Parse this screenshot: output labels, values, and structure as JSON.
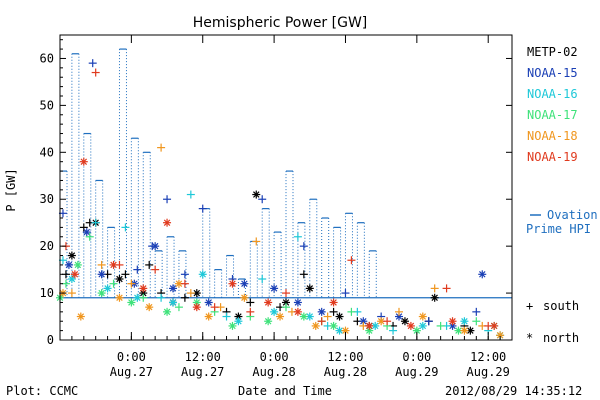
{
  "chart_data": {
    "type": "scatter",
    "title": "Hemispheric Power [GW]",
    "xlabel": "Date and Time",
    "ylabel": "P [GW]",
    "ylim": [
      0,
      65
    ],
    "yticks": [
      0,
      10,
      20,
      30,
      40,
      50,
      60
    ],
    "xlim": [
      "2012-08-26 12:00",
      "2012-08-29 16:00"
    ],
    "xticks": [
      {
        "t": "2012-08-27 00:00",
        "time": "0:00",
        "date": "Aug.27"
      },
      {
        "t": "2012-08-27 12:00",
        "time": "12:00",
        "date": "Aug.27"
      },
      {
        "t": "2012-08-28 00:00",
        "time": "0:00",
        "date": "Aug.28"
      },
      {
        "t": "2012-08-28 12:00",
        "time": "12:00",
        "date": "Aug.28"
      },
      {
        "t": "2012-08-29 00:00",
        "time": "0:00",
        "date": "Aug.29"
      },
      {
        "t": "2012-08-29 12:00",
        "time": "12:00",
        "date": "Aug.29"
      }
    ],
    "legend_placement": "right",
    "symbols": {
      "south": "+",
      "north": "*"
    },
    "symbol_labels": {
      "south": "south",
      "north": "north"
    },
    "ovation_label_1": "Ovation",
    "ovation_label_2": "Prime HPI",
    "ovation_color": "#1f6fbf",
    "ovation": {
      "times": [
        "2012-08-26 12:00",
        "2012-08-26 14:00",
        "2012-08-26 16:00",
        "2012-08-26 18:00",
        "2012-08-26 20:00",
        "2012-08-26 22:00",
        "2012-08-27 00:00",
        "2012-08-27 02:00",
        "2012-08-27 04:00",
        "2012-08-27 06:00",
        "2012-08-27 08:00",
        "2012-08-27 10:00",
        "2012-08-27 12:00",
        "2012-08-27 14:00",
        "2012-08-27 16:00",
        "2012-08-27 18:00",
        "2012-08-27 20:00",
        "2012-08-27 22:00",
        "2012-08-28 00:00",
        "2012-08-28 02:00",
        "2012-08-28 04:00",
        "2012-08-28 06:00",
        "2012-08-28 08:00",
        "2012-08-28 10:00",
        "2012-08-28 12:00",
        "2012-08-28 14:00",
        "2012-08-28 16:00",
        "2012-08-28 18:00",
        "2012-08-28 20:00",
        "2012-08-28 22:00",
        "2012-08-29 00:00",
        "2012-08-29 02:00",
        "2012-08-29 04:00",
        "2012-08-29 06:00",
        "2012-08-29 08:00",
        "2012-08-29 10:00",
        "2012-08-29 12:00",
        "2012-08-29 14:00"
      ],
      "peaks": [
        36,
        61,
        44,
        34,
        24,
        62,
        43,
        40,
        19,
        22,
        19,
        10,
        28,
        15,
        18,
        13,
        21,
        28,
        23,
        36,
        25,
        30,
        26,
        24,
        27,
        25,
        19
      ],
      "baseline": 9
    },
    "series": [
      {
        "name": "METP-02",
        "color": "#000000",
        "south": [
          [
            "2012-08-26 13:00",
            14
          ],
          [
            "2012-08-26 16:00",
            24
          ],
          [
            "2012-08-26 17:00",
            25
          ],
          [
            "2012-08-26 20:00",
            14
          ],
          [
            "2012-08-26 23:00",
            14
          ],
          [
            "2012-08-27 03:00",
            16
          ],
          [
            "2012-08-27 05:00",
            10
          ],
          [
            "2012-08-27 09:00",
            9
          ],
          [
            "2012-08-27 16:00",
            6
          ],
          [
            "2012-08-27 20:00",
            8
          ],
          [
            "2012-08-28 01:00",
            7
          ],
          [
            "2012-08-28 05:00",
            14
          ],
          [
            "2012-08-28 10:00",
            6
          ],
          [
            "2012-08-28 14:00",
            4
          ],
          [
            "2012-08-28 20:00",
            3
          ],
          [
            "2012-08-29 02:00",
            4
          ],
          [
            "2012-08-29 08:00",
            3
          ]
        ],
        "north": [
          [
            "2012-08-26 14:00",
            18
          ],
          [
            "2012-08-26 18:00",
            25
          ],
          [
            "2012-08-26 22:00",
            13
          ],
          [
            "2012-08-27 02:00",
            10
          ],
          [
            "2012-08-27 07:00",
            8
          ],
          [
            "2012-08-27 11:00",
            10
          ],
          [
            "2012-08-27 18:00",
            5
          ],
          [
            "2012-08-27 21:00",
            31
          ],
          [
            "2012-08-28 02:00",
            8
          ],
          [
            "2012-08-28 06:00",
            11
          ],
          [
            "2012-08-28 11:00",
            5
          ],
          [
            "2012-08-28 16:00",
            3
          ],
          [
            "2012-08-28 22:00",
            4
          ],
          [
            "2012-08-29 03:00",
            9
          ],
          [
            "2012-08-29 09:00",
            2
          ]
        ]
      },
      {
        "name": "NOAA-15",
        "color": "#1a3fb5",
        "south": [
          [
            "2012-08-26 12:30",
            27
          ],
          [
            "2012-08-26 17:30",
            59
          ],
          [
            "2012-08-27 01:00",
            15
          ],
          [
            "2012-08-27 03:30",
            20
          ],
          [
            "2012-08-27 06:00",
            30
          ],
          [
            "2012-08-27 09:00",
            14
          ],
          [
            "2012-08-27 12:00",
            28
          ],
          [
            "2012-08-27 17:00",
            13
          ],
          [
            "2012-08-27 22:00",
            30
          ],
          [
            "2012-08-28 05:00",
            20
          ],
          [
            "2012-08-28 12:00",
            10
          ],
          [
            "2012-08-28 18:00",
            5
          ],
          [
            "2012-08-29 02:00",
            4
          ],
          [
            "2012-08-29 10:00",
            6
          ]
        ],
        "north": [
          [
            "2012-08-26 13:30",
            16
          ],
          [
            "2012-08-26 16:30",
            23
          ],
          [
            "2012-08-26 19:00",
            14
          ],
          [
            "2012-08-27 00:30",
            12
          ],
          [
            "2012-08-27 04:00",
            20
          ],
          [
            "2012-08-27 07:00",
            11
          ],
          [
            "2012-08-27 13:00",
            8
          ],
          [
            "2012-08-27 19:00",
            12
          ],
          [
            "2012-08-28 00:00",
            11
          ],
          [
            "2012-08-28 04:00",
            8
          ],
          [
            "2012-08-28 08:00",
            6
          ],
          [
            "2012-08-28 15:00",
            4
          ],
          [
            "2012-08-28 21:00",
            5
          ],
          [
            "2012-08-29 06:00",
            3
          ],
          [
            "2012-08-29 11:00",
            14
          ]
        ]
      },
      {
        "name": "NOAA-16",
        "color": "#1ec8d8",
        "south": [
          [
            "2012-08-26 12:30",
            17
          ],
          [
            "2012-08-26 18:00",
            25
          ],
          [
            "2012-08-26 23:00",
            24
          ],
          [
            "2012-08-27 05:00",
            9
          ],
          [
            "2012-08-27 10:00",
            31
          ],
          [
            "2012-08-27 16:00",
            5
          ],
          [
            "2012-08-27 22:00",
            13
          ],
          [
            "2012-08-28 04:00",
            22
          ],
          [
            "2012-08-28 09:00",
            3
          ],
          [
            "2012-08-28 14:00",
            6
          ],
          [
            "2012-08-28 20:00",
            2
          ],
          [
            "2012-08-29 05:00",
            3
          ],
          [
            "2012-08-29 12:00",
            2
          ]
        ],
        "north": [
          [
            "2012-08-26 14:00",
            13
          ],
          [
            "2012-08-26 20:00",
            11
          ],
          [
            "2012-08-27 01:00",
            9
          ],
          [
            "2012-08-27 07:00",
            8
          ],
          [
            "2012-08-27 12:00",
            14
          ],
          [
            "2012-08-27 18:00",
            4
          ],
          [
            "2012-08-28 00:00",
            6
          ],
          [
            "2012-08-28 06:00",
            5
          ],
          [
            "2012-08-28 11:00",
            2
          ],
          [
            "2012-08-28 17:00",
            3
          ],
          [
            "2012-08-29 01:00",
            3
          ],
          [
            "2012-08-29 08:00",
            4
          ],
          [
            "2012-08-29 14:00",
            1
          ]
        ]
      },
      {
        "name": "NOAA-17",
        "color": "#3ee27a",
        "south": [
          [
            "2012-08-26 13:00",
            12
          ],
          [
            "2012-08-26 17:00",
            22
          ],
          [
            "2012-08-26 21:00",
            12
          ],
          [
            "2012-08-27 02:00",
            9
          ],
          [
            "2012-08-27 08:00",
            7
          ],
          [
            "2012-08-27 14:00",
            6
          ],
          [
            "2012-08-27 20:00",
            5
          ],
          [
            "2012-08-28 02:00",
            7
          ],
          [
            "2012-08-28 08:00",
            4
          ],
          [
            "2012-08-28 13:00",
            6
          ],
          [
            "2012-08-28 19:00",
            3
          ],
          [
            "2012-08-29 04:00",
            3
          ],
          [
            "2012-08-29 10:00",
            4
          ]
        ],
        "north": [
          [
            "2012-08-26 12:00",
            9
          ],
          [
            "2012-08-26 15:00",
            16
          ],
          [
            "2012-08-26 19:00",
            10
          ],
          [
            "2012-08-27 00:00",
            8
          ],
          [
            "2012-08-27 06:00",
            6
          ],
          [
            "2012-08-27 11:00",
            8
          ],
          [
            "2012-08-27 17:00",
            3
          ],
          [
            "2012-08-27 23:00",
            4
          ],
          [
            "2012-08-28 05:00",
            5
          ],
          [
            "2012-08-28 10:00",
            3
          ],
          [
            "2012-08-28 16:00",
            2
          ],
          [
            "2012-08-29 00:00",
            2
          ],
          [
            "2012-08-29 07:00",
            2
          ],
          [
            "2012-08-29 13:00",
            3
          ]
        ]
      },
      {
        "name": "NOAA-18",
        "color": "#f0961e",
        "south": [
          [
            "2012-08-26 14:00",
            10
          ],
          [
            "2012-08-26 19:00",
            16
          ],
          [
            "2012-08-27 00:00",
            12
          ],
          [
            "2012-08-27 05:00",
            41
          ],
          [
            "2012-08-27 10:00",
            10
          ],
          [
            "2012-08-27 15:00",
            7
          ],
          [
            "2012-08-27 21:00",
            21
          ],
          [
            "2012-08-28 03:00",
            6
          ],
          [
            "2012-08-28 09:00",
            5
          ],
          [
            "2012-08-28 15:00",
            3
          ],
          [
            "2012-08-28 21:00",
            6
          ],
          [
            "2012-08-29 03:00",
            11
          ],
          [
            "2012-08-29 11:00",
            3
          ]
        ],
        "north": [
          [
            "2012-08-26 12:30",
            10
          ],
          [
            "2012-08-26 15:30",
            5
          ],
          [
            "2012-08-26 22:00",
            9
          ],
          [
            "2012-08-27 03:00",
            7
          ],
          [
            "2012-08-27 08:00",
            12
          ],
          [
            "2012-08-27 13:00",
            5
          ],
          [
            "2012-08-27 19:00",
            9
          ],
          [
            "2012-08-28 01:00",
            5
          ],
          [
            "2012-08-28 07:00",
            3
          ],
          [
            "2012-08-28 12:00",
            2
          ],
          [
            "2012-08-28 18:00",
            4
          ],
          [
            "2012-08-29 01:00",
            5
          ],
          [
            "2012-08-29 08:00",
            2
          ],
          [
            "2012-08-29 14:00",
            1
          ]
        ]
      },
      {
        "name": "NOAA-19",
        "color": "#e03a1e",
        "south": [
          [
            "2012-08-26 13:00",
            20
          ],
          [
            "2012-08-26 18:00",
            57
          ],
          [
            "2012-08-26 22:00",
            16
          ],
          [
            "2012-08-27 04:00",
            15
          ],
          [
            "2012-08-27 09:00",
            12
          ],
          [
            "2012-08-27 14:00",
            7
          ],
          [
            "2012-08-27 20:00",
            6
          ],
          [
            "2012-08-28 02:00",
            10
          ],
          [
            "2012-08-28 08:00",
            4
          ],
          [
            "2012-08-28 13:00",
            17
          ],
          [
            "2012-08-28 19:00",
            4
          ],
          [
            "2012-08-29 05:00",
            11
          ],
          [
            "2012-08-29 12:00",
            3
          ]
        ],
        "north": [
          [
            "2012-08-26 14:30",
            14
          ],
          [
            "2012-08-26 16:00",
            38
          ],
          [
            "2012-08-26 21:00",
            16
          ],
          [
            "2012-08-27 02:00",
            11
          ],
          [
            "2012-08-27 06:00",
            25
          ],
          [
            "2012-08-27 11:00",
            7
          ],
          [
            "2012-08-27 17:00",
            12
          ],
          [
            "2012-08-27 23:00",
            8
          ],
          [
            "2012-08-28 04:00",
            6
          ],
          [
            "2012-08-28 10:00",
            8
          ],
          [
            "2012-08-28 16:00",
            3
          ],
          [
            "2012-08-28 23:00",
            3
          ],
          [
            "2012-08-29 06:00",
            4
          ],
          [
            "2012-08-29 13:00",
            3
          ]
        ]
      }
    ]
  },
  "footer": {
    "plot_credit": "Plot: CCMC",
    "timestamp": "2012/08/29 14:35:12"
  }
}
